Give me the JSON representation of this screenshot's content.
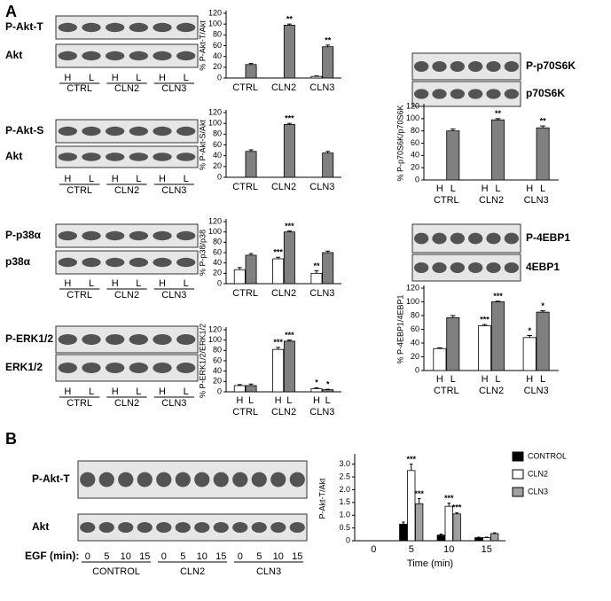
{
  "panels": [
    "A",
    "B"
  ],
  "blots": [
    {
      "rows": [
        "P-Akt-T",
        "Akt"
      ],
      "lanes": [
        "H",
        "L"
      ],
      "groups": [
        "CTRL",
        "CLN2",
        "CLN3"
      ]
    },
    {
      "rows": [
        "P-Akt-S",
        "Akt"
      ],
      "lanes": [
        "H",
        "L"
      ],
      "groups": [
        "CTRL",
        "CLN2",
        "CLN3"
      ]
    },
    {
      "rows": [
        "P-p38α",
        "p38α"
      ],
      "lanes": [
        "H",
        "L"
      ],
      "groups": [
        "CTRL",
        "CLN2",
        "CLN3"
      ]
    },
    {
      "rows": [
        "P-ERK1/2",
        "ERK1/2"
      ],
      "lanes": [
        "H",
        "L"
      ],
      "groups": [
        "CTRL",
        "CLN2",
        "CLN3"
      ]
    },
    {
      "rows": [
        "P-p70S6K",
        "p70S6K"
      ]
    },
    {
      "rows": [
        "P-4EBP1",
        "4EBP1"
      ]
    },
    {
      "rows": [
        "P-Akt-T",
        "Akt"
      ],
      "lane_title": "EGF (min):",
      "lanes": [
        "0",
        "5",
        "10",
        "15"
      ],
      "groups": [
        "CONTROL",
        "CLN2",
        "CLN3"
      ]
    }
  ],
  "chart_data": [
    {
      "type": "bar",
      "y_label": "% P-Akt-T/Akt",
      "categories": [
        "CTRL",
        "CLN2",
        "CLN3"
      ],
      "series": [
        {
          "color": "#ffffff",
          "values": [
            0,
            0,
            3
          ],
          "errors": [
            0,
            0,
            1
          ],
          "significance": [
            null,
            null,
            null
          ]
        },
        {
          "color": "#808080",
          "values": [
            25,
            98,
            58
          ],
          "errors": [
            2,
            2,
            3
          ],
          "significance": [
            null,
            "**",
            "**"
          ]
        }
      ],
      "ylim": [
        0,
        120
      ],
      "yticks": [
        0,
        20,
        40,
        60,
        80,
        100,
        120
      ]
    },
    {
      "type": "bar",
      "y_label": "% P-Akt-S/Akt",
      "categories": [
        "CTRL",
        "CLN2",
        "CLN3"
      ],
      "series": [
        {
          "color": "#ffffff",
          "values": [
            0,
            0,
            0
          ],
          "errors": [
            0,
            0,
            0
          ],
          "significance": [
            null,
            null,
            null
          ]
        },
        {
          "color": "#808080",
          "values": [
            48,
            98,
            45
          ],
          "errors": [
            3,
            2,
            3
          ],
          "significance": [
            null,
            "***",
            null
          ]
        }
      ],
      "ylim": [
        0,
        120
      ],
      "yticks": [
        0,
        20,
        40,
        60,
        80,
        100,
        120
      ]
    },
    {
      "type": "bar",
      "y_label": "% P-p38/p38",
      "categories": [
        "CTRL",
        "CLN2",
        "CLN3"
      ],
      "series": [
        {
          "color": "#ffffff",
          "values": [
            27,
            48,
            20
          ],
          "errors": [
            4,
            3,
            5
          ],
          "significance": [
            null,
            "***",
            "**"
          ]
        },
        {
          "color": "#808080",
          "values": [
            55,
            100,
            60
          ],
          "errors": [
            3,
            2,
            3
          ],
          "significance": [
            null,
            "***",
            null
          ]
        }
      ],
      "ylim": [
        0,
        120
      ],
      "yticks": [
        0,
        20,
        40,
        60,
        80,
        100,
        120
      ]
    },
    {
      "type": "bar",
      "y_label": "% P-ERK1/2/ERK1/2",
      "categories": [
        "CTRL",
        "CLN2",
        "CLN3"
      ],
      "series": [
        {
          "name": "H",
          "color": "#ffffff",
          "values": [
            12,
            82,
            6
          ],
          "errors": [
            2,
            4,
            2
          ],
          "significance": [
            null,
            "***",
            "*"
          ]
        },
        {
          "name": "L",
          "color": "#808080",
          "values": [
            12,
            98,
            4
          ],
          "errors": [
            3,
            2,
            1
          ],
          "significance": [
            null,
            "***",
            "*"
          ]
        }
      ],
      "ylim": [
        0,
        120
      ],
      "yticks": [
        0,
        20,
        40,
        60,
        80,
        100,
        120
      ]
    },
    {
      "type": "bar",
      "y_label": "% P-p70S6K/p70S6K",
      "categories": [
        "CTRL",
        "CLN2",
        "CLN3"
      ],
      "series": [
        {
          "name": "H",
          "color": "#ffffff",
          "values": [
            0,
            0,
            0
          ],
          "errors": [
            0,
            0,
            0
          ],
          "significance": [
            null,
            null,
            null
          ]
        },
        {
          "name": "L",
          "color": "#808080",
          "values": [
            80,
            98,
            85
          ],
          "errors": [
            3,
            2,
            3
          ],
          "significance": [
            null,
            "**",
            "**"
          ]
        }
      ],
      "ylim": [
        0,
        120
      ],
      "yticks": [
        0,
        20,
        40,
        60,
        80,
        100,
        120
      ]
    },
    {
      "type": "bar",
      "y_label": "% P-4EBP1/4EBP1",
      "categories": [
        "CTRL",
        "CLN2",
        "CLN3"
      ],
      "series": [
        {
          "name": "H",
          "color": "#ffffff",
          "values": [
            32,
            65,
            48
          ],
          "errors": [
            1,
            2,
            3
          ],
          "significance": [
            null,
            "***",
            "*"
          ]
        },
        {
          "name": "L",
          "color": "#808080",
          "values": [
            77,
            100,
            85
          ],
          "errors": [
            3,
            1,
            2
          ],
          "significance": [
            null,
            "***",
            "*"
          ]
        }
      ],
      "ylim": [
        0,
        120
      ],
      "yticks": [
        0,
        20,
        40,
        60,
        80,
        100,
        120
      ]
    },
    {
      "type": "bar",
      "y_label": "P-Akt-T/Akt",
      "x_label": "Time (min)",
      "categories": [
        "0",
        "5",
        "10",
        "15"
      ],
      "series": [
        {
          "name": "CONTROL",
          "color": "#000000",
          "values": [
            0,
            0.65,
            0.22,
            0.12
          ],
          "errors": [
            0,
            0.08,
            0.04,
            0.02
          ],
          "significance": [
            null,
            null,
            null,
            null
          ]
        },
        {
          "name": "CLN2",
          "color": "#ffffff",
          "values": [
            0,
            2.75,
            1.35,
            0.12
          ],
          "errors": [
            0,
            0.25,
            0.12,
            0.02
          ],
          "significance": [
            null,
            "***",
            "***",
            null
          ]
        },
        {
          "name": "CLN3",
          "color": "#a0a0a0",
          "values": [
            0,
            1.45,
            1.05,
            0.28
          ],
          "errors": [
            0,
            0.2,
            0.05,
            0.03
          ],
          "significance": [
            null,
            "***",
            "***",
            null
          ]
        }
      ],
      "ylim": [
        0,
        3.3
      ],
      "yticks": [
        0,
        0.5,
        {
          "value": 1,
          "label": "1.0"
        },
        1.5,
        {
          "value": 2,
          "label": "2.0"
        },
        2.5,
        {
          "value": 3,
          "label": "3.0"
        }
      ],
      "legend": "upper right"
    }
  ]
}
